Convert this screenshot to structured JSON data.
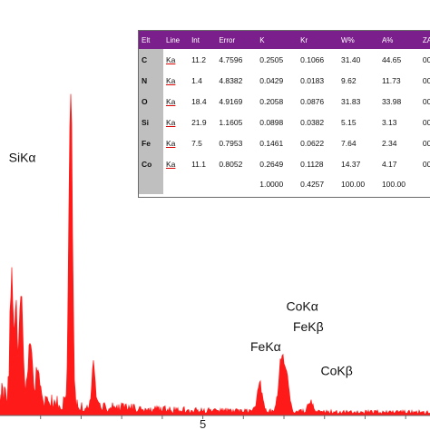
{
  "chart_data": {
    "type": "line",
    "xlabel": "",
    "ylabel": "",
    "x_tick_labels": [
      "5"
    ],
    "x_ticks": [
      5
    ],
    "xlim": [
      0.0,
      10.6
    ],
    "ylim": [
      0,
      100
    ],
    "series_color": "#ff1a1a",
    "peaks": [
      {
        "x": 0.28,
        "y": 31
      },
      {
        "x": 0.39,
        "y": 27
      },
      {
        "x": 0.52,
        "y": 34
      },
      {
        "x": 0.71,
        "y": 11
      },
      {
        "x": 0.78,
        "y": 13
      },
      {
        "x": 0.93,
        "y": 10
      },
      {
        "x": 1.74,
        "y": 99
      },
      {
        "x": 2.31,
        "y": 12
      },
      {
        "x": 6.4,
        "y": 8
      },
      {
        "x": 6.93,
        "y": 14
      },
      {
        "x": 7.06,
        "y": 10
      },
      {
        "x": 7.65,
        "y": 3
      }
    ],
    "annotations": [
      {
        "text": "SiKα",
        "x": 0.55,
        "y": 63
      },
      {
        "text": "CoKα",
        "x": 7.45,
        "y": 26
      },
      {
        "text": "FeKβ",
        "x": 7.6,
        "y": 21
      },
      {
        "text": "FeKα",
        "x": 6.55,
        "y": 16
      },
      {
        "text": "CoKβ",
        "x": 8.3,
        "y": 10
      }
    ]
  },
  "table": {
    "header": [
      "Elt",
      "Line",
      "Int",
      "Error",
      "K",
      "Kr",
      "W%",
      "A%",
      "ZAF"
    ],
    "header_color": "#7b1f8c",
    "rows": [
      [
        "C",
        "Ka",
        "11.2",
        "4.7596",
        "0.2505",
        "0.1066",
        "31.40",
        "44.65",
        "00"
      ],
      [
        "N",
        "Ka",
        "1.4",
        "4.8382",
        "0.0429",
        "0.0183",
        "9.62",
        "11.73",
        "00"
      ],
      [
        "O",
        "Ka",
        "18.4",
        "4.9169",
        "0.2058",
        "0.0876",
        "31.83",
        "33.98",
        "00"
      ],
      [
        "Si",
        "Ka",
        "21.9",
        "1.1605",
        "0.0898",
        "0.0382",
        "5.15",
        "3.13",
        "00"
      ],
      [
        "Fe",
        "Ka",
        "7.5",
        "0.7953",
        "0.1461",
        "0.0622",
        "7.64",
        "2.34",
        "00"
      ],
      [
        "Co",
        "Ka",
        "11.1",
        "0.8052",
        "0.2649",
        "0.1128",
        "14.37",
        "4.17",
        "00"
      ]
    ],
    "total": [
      "",
      "",
      "",
      "",
      "1.0000",
      "0.4257",
      "100.00",
      "100.00",
      ""
    ]
  }
}
